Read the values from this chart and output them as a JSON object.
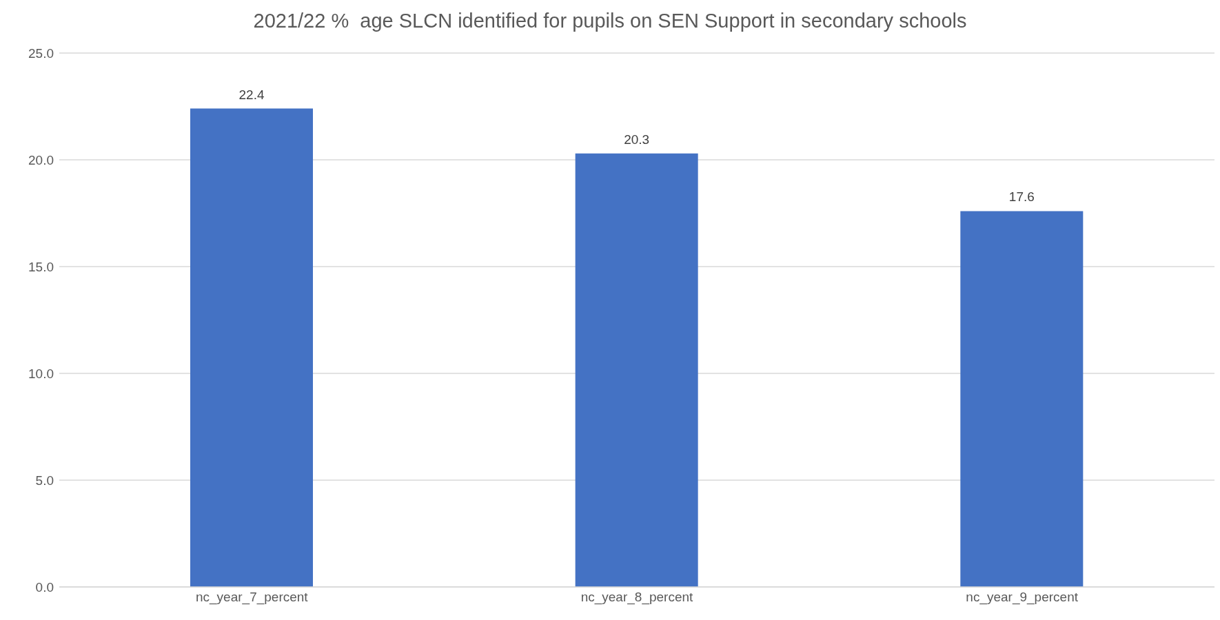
{
  "chart_data": {
    "type": "bar",
    "title": "2021/22 %  age SLCN identified for pupils on SEN Support in secondary schools",
    "categories": [
      "nc_year_7_percent",
      "nc_year_8_percent",
      "nc_year_9_percent"
    ],
    "values": [
      22.4,
      20.3,
      17.6
    ],
    "color": "#4472c4",
    "ylim": [
      0,
      25
    ],
    "yticks": [
      {
        "value": 0,
        "label": "0.0"
      },
      {
        "value": 5,
        "label": "5.0"
      },
      {
        "value": 10,
        "label": "10.0"
      },
      {
        "value": 15,
        "label": "15.0"
      },
      {
        "value": 20,
        "label": "20.0"
      },
      {
        "value": 25,
        "label": "25.0"
      }
    ],
    "grid": "y",
    "data_labels": true
  }
}
